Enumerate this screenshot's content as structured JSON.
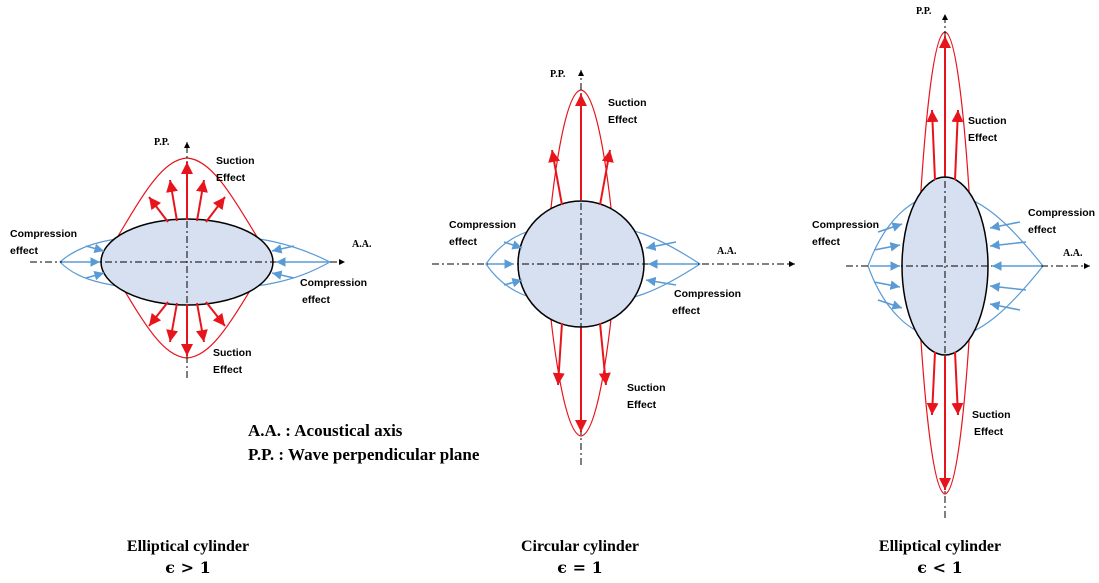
{
  "labels": {
    "pp": "P.P.",
    "aa": "A.A.",
    "suction": [
      "Suction",
      "Effect"
    ],
    "compression_left": [
      "Compression",
      "effect"
    ],
    "compression_right_low": [
      "Compression",
      "effect"
    ],
    "compression_right_up": [
      "Compression",
      "effect"
    ]
  },
  "legend": {
    "aa": "A.A. : Acoustical axis",
    "pp": "P.P. : Wave perpendicular plane"
  },
  "captions": [
    {
      "title": "Elliptical cylinder",
      "eps": "ϵ > 1"
    },
    {
      "title": "Circular cylinder",
      "eps": "ϵ = 1"
    },
    {
      "title": "Elliptical cylinder",
      "eps": "ϵ < 1"
    }
  ],
  "colors": {
    "suction": "#e8141c",
    "compression": "#5b9bd5",
    "body_fill": "#d6e0f1",
    "outline": "#000000"
  }
}
